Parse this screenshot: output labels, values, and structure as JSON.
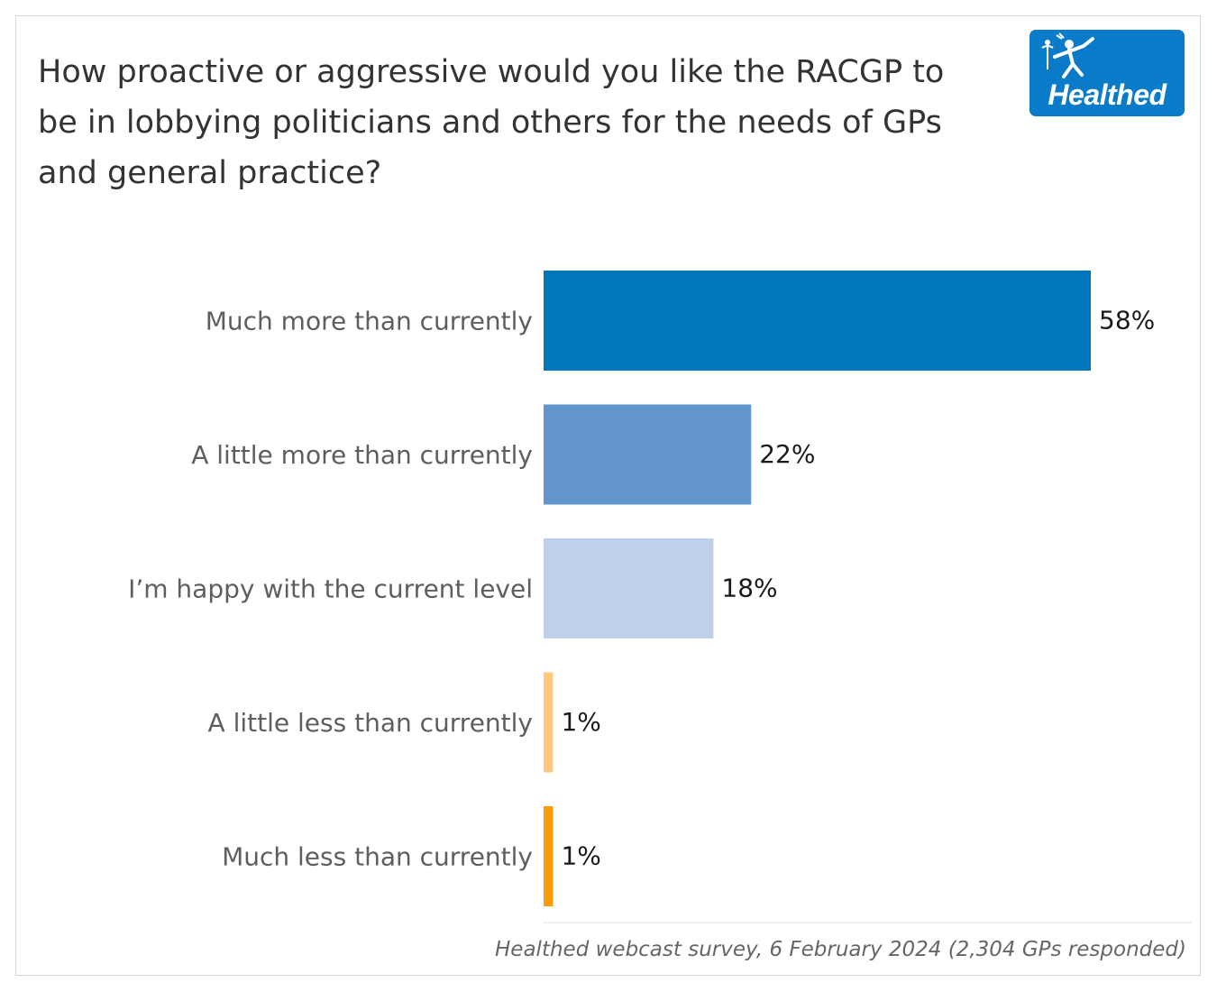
{
  "chart_data": {
    "type": "bar",
    "orientation": "horizontal",
    "title": "How proactive or aggressive would you like the RACGP to be in lobbying politicians and others for the needs of GPs and general practice?",
    "categories": [
      "Much more than currently",
      "A little more than currently",
      "I’m happy with the current level",
      "A little less than currently",
      "Much less than currently"
    ],
    "values": [
      58,
      22,
      18,
      1,
      1
    ],
    "value_labels": [
      "58%",
      "22%",
      "18%",
      "1%",
      "1%"
    ],
    "colors": [
      "#0077bd",
      "#6395cf",
      "#bfd0e9",
      "#ffc87a",
      "#ff9a0a"
    ],
    "xlabel": "",
    "ylabel": "",
    "xlim": [
      0,
      58
    ],
    "grid": false,
    "legend": "none"
  },
  "source": "Healthed webcast survey, 6 February 2024 (2,304 GPs responded)",
  "logo": {
    "text": "Healthed",
    "background": "#0a7bc8",
    "icon": "hermes-figure-icon"
  }
}
